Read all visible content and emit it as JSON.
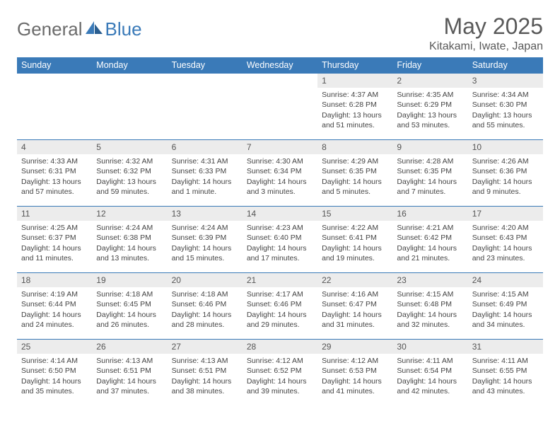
{
  "brand": {
    "part1": "General",
    "part2": "Blue"
  },
  "title": "May 2025",
  "location": "Kitakami, Iwate, Japan",
  "colors": {
    "header_bg": "#3a7ab8",
    "header_text": "#ffffff",
    "daynum_bg": "#ececec",
    "rule": "#3a7ab8",
    "text": "#444444",
    "title_color": "#595959"
  },
  "weekdays": [
    "Sunday",
    "Monday",
    "Tuesday",
    "Wednesday",
    "Thursday",
    "Friday",
    "Saturday"
  ],
  "weeks": [
    {
      "nums": [
        "",
        "",
        "",
        "",
        "1",
        "2",
        "3"
      ],
      "sunrise": [
        "",
        "",
        "",
        "",
        "Sunrise: 4:37 AM",
        "Sunrise: 4:35 AM",
        "Sunrise: 4:34 AM"
      ],
      "sunset": [
        "",
        "",
        "",
        "",
        "Sunset: 6:28 PM",
        "Sunset: 6:29 PM",
        "Sunset: 6:30 PM"
      ],
      "daylight": [
        "",
        "",
        "",
        "",
        "Daylight: 13 hours and 51 minutes.",
        "Daylight: 13 hours and 53 minutes.",
        "Daylight: 13 hours and 55 minutes."
      ]
    },
    {
      "nums": [
        "4",
        "5",
        "6",
        "7",
        "8",
        "9",
        "10"
      ],
      "sunrise": [
        "Sunrise: 4:33 AM",
        "Sunrise: 4:32 AM",
        "Sunrise: 4:31 AM",
        "Sunrise: 4:30 AM",
        "Sunrise: 4:29 AM",
        "Sunrise: 4:28 AM",
        "Sunrise: 4:26 AM"
      ],
      "sunset": [
        "Sunset: 6:31 PM",
        "Sunset: 6:32 PM",
        "Sunset: 6:33 PM",
        "Sunset: 6:34 PM",
        "Sunset: 6:35 PM",
        "Sunset: 6:35 PM",
        "Sunset: 6:36 PM"
      ],
      "daylight": [
        "Daylight: 13 hours and 57 minutes.",
        "Daylight: 13 hours and 59 minutes.",
        "Daylight: 14 hours and 1 minute.",
        "Daylight: 14 hours and 3 minutes.",
        "Daylight: 14 hours and 5 minutes.",
        "Daylight: 14 hours and 7 minutes.",
        "Daylight: 14 hours and 9 minutes."
      ]
    },
    {
      "nums": [
        "11",
        "12",
        "13",
        "14",
        "15",
        "16",
        "17"
      ],
      "sunrise": [
        "Sunrise: 4:25 AM",
        "Sunrise: 4:24 AM",
        "Sunrise: 4:24 AM",
        "Sunrise: 4:23 AM",
        "Sunrise: 4:22 AM",
        "Sunrise: 4:21 AM",
        "Sunrise: 4:20 AM"
      ],
      "sunset": [
        "Sunset: 6:37 PM",
        "Sunset: 6:38 PM",
        "Sunset: 6:39 PM",
        "Sunset: 6:40 PM",
        "Sunset: 6:41 PM",
        "Sunset: 6:42 PM",
        "Sunset: 6:43 PM"
      ],
      "daylight": [
        "Daylight: 14 hours and 11 minutes.",
        "Daylight: 14 hours and 13 minutes.",
        "Daylight: 14 hours and 15 minutes.",
        "Daylight: 14 hours and 17 minutes.",
        "Daylight: 14 hours and 19 minutes.",
        "Daylight: 14 hours and 21 minutes.",
        "Daylight: 14 hours and 23 minutes."
      ]
    },
    {
      "nums": [
        "18",
        "19",
        "20",
        "21",
        "22",
        "23",
        "24"
      ],
      "sunrise": [
        "Sunrise: 4:19 AM",
        "Sunrise: 4:18 AM",
        "Sunrise: 4:18 AM",
        "Sunrise: 4:17 AM",
        "Sunrise: 4:16 AM",
        "Sunrise: 4:15 AM",
        "Sunrise: 4:15 AM"
      ],
      "sunset": [
        "Sunset: 6:44 PM",
        "Sunset: 6:45 PM",
        "Sunset: 6:46 PM",
        "Sunset: 6:46 PM",
        "Sunset: 6:47 PM",
        "Sunset: 6:48 PM",
        "Sunset: 6:49 PM"
      ],
      "daylight": [
        "Daylight: 14 hours and 24 minutes.",
        "Daylight: 14 hours and 26 minutes.",
        "Daylight: 14 hours and 28 minutes.",
        "Daylight: 14 hours and 29 minutes.",
        "Daylight: 14 hours and 31 minutes.",
        "Daylight: 14 hours and 32 minutes.",
        "Daylight: 14 hours and 34 minutes."
      ]
    },
    {
      "nums": [
        "25",
        "26",
        "27",
        "28",
        "29",
        "30",
        "31"
      ],
      "sunrise": [
        "Sunrise: 4:14 AM",
        "Sunrise: 4:13 AM",
        "Sunrise: 4:13 AM",
        "Sunrise: 4:12 AM",
        "Sunrise: 4:12 AM",
        "Sunrise: 4:11 AM",
        "Sunrise: 4:11 AM"
      ],
      "sunset": [
        "Sunset: 6:50 PM",
        "Sunset: 6:51 PM",
        "Sunset: 6:51 PM",
        "Sunset: 6:52 PM",
        "Sunset: 6:53 PM",
        "Sunset: 6:54 PM",
        "Sunset: 6:55 PM"
      ],
      "daylight": [
        "Daylight: 14 hours and 35 minutes.",
        "Daylight: 14 hours and 37 minutes.",
        "Daylight: 14 hours and 38 minutes.",
        "Daylight: 14 hours and 39 minutes.",
        "Daylight: 14 hours and 41 minutes.",
        "Daylight: 14 hours and 42 minutes.",
        "Daylight: 14 hours and 43 minutes."
      ]
    }
  ]
}
